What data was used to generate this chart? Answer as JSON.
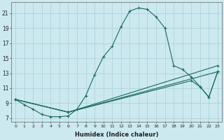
{
  "xlabel": "Humidex (Indice chaleur)",
  "ylabel": "",
  "bg_color": "#cce9f0",
  "grid_color": "#a8ced8",
  "line_color": "#1a6b5a",
  "xlim": [
    -0.5,
    23.5
  ],
  "ylim": [
    6.5,
    22.5
  ],
  "xticks": [
    0,
    1,
    2,
    3,
    4,
    5,
    6,
    7,
    8,
    9,
    10,
    11,
    12,
    13,
    14,
    15,
    16,
    17,
    18,
    19,
    20,
    21,
    22,
    23
  ],
  "yticks": [
    7,
    9,
    11,
    13,
    15,
    17,
    19,
    21
  ],
  "lines": [
    {
      "x": [
        0,
        1,
        2,
        3,
        4,
        5,
        6,
        7,
        8,
        9,
        10,
        11,
        12,
        13,
        14,
        15,
        16,
        17,
        18,
        19,
        20,
        21,
        22,
        23
      ],
      "y": [
        9.5,
        8.8,
        8.2,
        7.5,
        7.2,
        7.2,
        7.3,
        8.2,
        10.0,
        12.8,
        15.2,
        16.6,
        19.2,
        21.3,
        21.7,
        21.5,
        20.5,
        19.0,
        14.0,
        13.5,
        12.5,
        11.2,
        9.8,
        13.2
      ]
    },
    {
      "x": [
        0,
        6,
        23
      ],
      "y": [
        9.5,
        7.8,
        13.2
      ]
    },
    {
      "x": [
        0,
        6,
        20,
        21,
        22,
        23
      ],
      "y": [
        9.5,
        7.8,
        12.0,
        11.2,
        9.8,
        13.2
      ]
    },
    {
      "x": [
        0,
        6,
        23
      ],
      "y": [
        9.5,
        7.8,
        14.0
      ]
    }
  ]
}
